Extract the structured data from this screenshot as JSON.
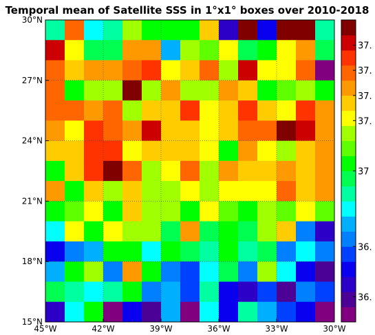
{
  "chart_data": {
    "type": "heatmap",
    "title": "Temporal mean of Satellite SSS in 1°x1° boxes over 2010-2018",
    "x_range": [
      -45,
      -30
    ],
    "y_range": [
      15,
      30
    ],
    "x_ticks": [
      {
        "value": -45,
        "label": "45°W"
      },
      {
        "value": -42,
        "label": "42°W"
      },
      {
        "value": -39,
        "label": "39°W"
      },
      {
        "value": -36,
        "label": "36°W"
      },
      {
        "value": -33,
        "label": "33°W"
      },
      {
        "value": -30,
        "label": "30°W"
      }
    ],
    "y_ticks": [
      {
        "value": 15,
        "label": "15°N"
      },
      {
        "value": 18,
        "label": "18°N"
      },
      {
        "value": 21,
        "label": "21°N"
      },
      {
        "value": 24,
        "label": "24°N"
      },
      {
        "value": 27,
        "label": "27°N"
      },
      {
        "value": 30,
        "label": "30°N"
      }
    ],
    "grid": true,
    "cell_size_deg": 1,
    "colorbar": {
      "range": [
        36.4,
        37.6
      ],
      "levels": 20,
      "ticks": [
        {
          "value": 36.5,
          "label": "36."
        },
        {
          "value": 36.7,
          "label": "36."
        },
        {
          "value": 37.0,
          "label": "37"
        },
        {
          "value": 37.2,
          "label": "37."
        },
        {
          "value": 37.3,
          "label": "37."
        },
        {
          "value": 37.4,
          "label": "37."
        },
        {
          "value": 37.5,
          "label": "37."
        }
      ]
    },
    "colormap": [
      "#800080",
      "#4b0096",
      "#2d00c8",
      "#0a00f0",
      "#0040ff",
      "#0080ff",
      "#00b0ff",
      "#00ffff",
      "#00ffa0",
      "#00ff50",
      "#00ff00",
      "#60ff00",
      "#a0ff00",
      "#ffff00",
      "#ffcc00",
      "#ff9900",
      "#ff6600",
      "#ff3300",
      "#cc0000",
      "#800000"
    ],
    "rows_lat_descending": [
      [
        8,
        16,
        7,
        8,
        12,
        10,
        10,
        10,
        14,
        2,
        19,
        3,
        19,
        19,
        8
      ],
      [
        18,
        13,
        9,
        9,
        15,
        15,
        6,
        12,
        11,
        13,
        9,
        10,
        13,
        15,
        9
      ],
      [
        16,
        14,
        15,
        15,
        16,
        17,
        13,
        14,
        16,
        12,
        18,
        13,
        13,
        16,
        0
      ],
      [
        16,
        10,
        12,
        12,
        19,
        12,
        15,
        12,
        12,
        15,
        14,
        10,
        11,
        12,
        10
      ],
      [
        16,
        16,
        15,
        16,
        12,
        14,
        14,
        17,
        13,
        14,
        17,
        14,
        13,
        17,
        15
      ],
      [
        15,
        13,
        17,
        16,
        15,
        18,
        14,
        14,
        13,
        14,
        16,
        16,
        19,
        18,
        15
      ],
      [
        14,
        14,
        17,
        17,
        13,
        14,
        14,
        14,
        13,
        10,
        15,
        13,
        12,
        14,
        15
      ],
      [
        10,
        14,
        17,
        19,
        16,
        12,
        13,
        16,
        12,
        15,
        14,
        14,
        15,
        14,
        15
      ],
      [
        15,
        10,
        14,
        12,
        14,
        12,
        12,
        13,
        12,
        13,
        13,
        13,
        16,
        14,
        15
      ],
      [
        10,
        11,
        13,
        10,
        14,
        12,
        12,
        10,
        13,
        11,
        10,
        12,
        11,
        13,
        11
      ],
      [
        7,
        13,
        10,
        13,
        12,
        12,
        9,
        15,
        9,
        10,
        9,
        12,
        14,
        5,
        2
      ],
      [
        3,
        5,
        6,
        10,
        10,
        7,
        10,
        9,
        8,
        10,
        8,
        9,
        5,
        7,
        5
      ],
      [
        6,
        10,
        12,
        5,
        15,
        10,
        5,
        4,
        7,
        9,
        5,
        12,
        7,
        3,
        1
      ],
      [
        9,
        8,
        7,
        8,
        10,
        5,
        6,
        4,
        8,
        3,
        2,
        4,
        1,
        5,
        4
      ],
      [
        2,
        7,
        10,
        0,
        3,
        1,
        6,
        0,
        7,
        3,
        8,
        6,
        4,
        3,
        0
      ]
    ]
  }
}
